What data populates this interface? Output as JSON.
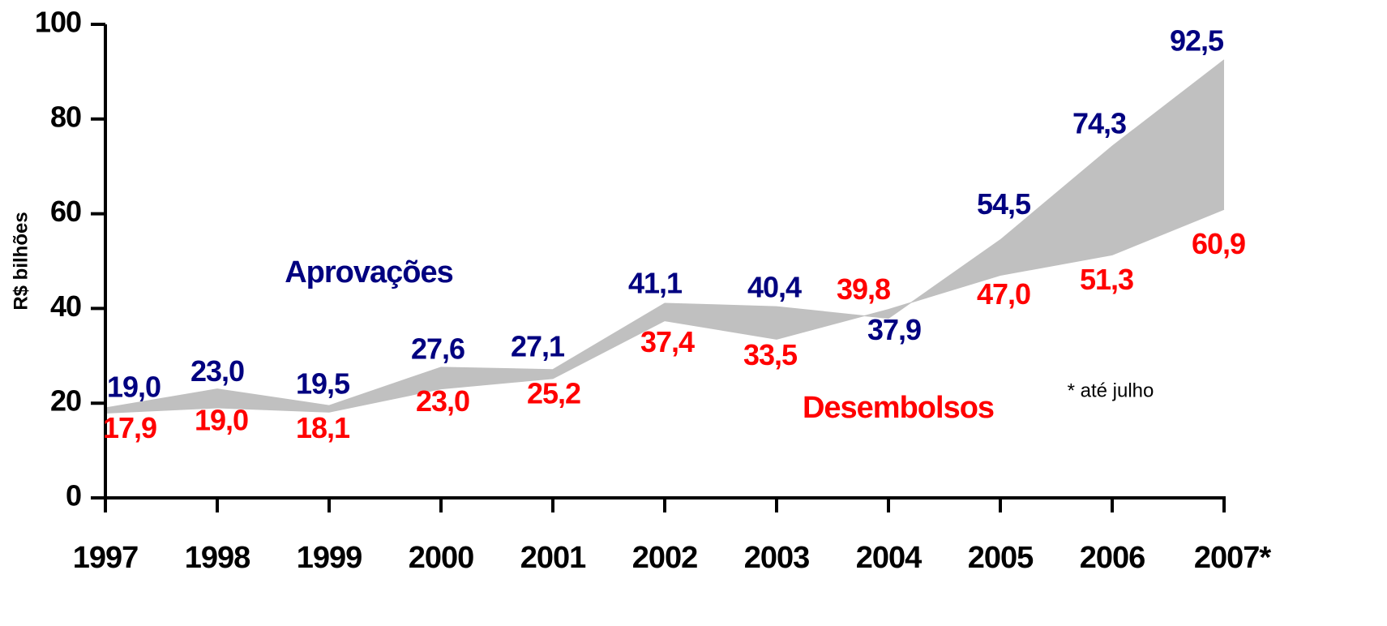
{
  "chart_data": {
    "type": "area_between",
    "y_label": "R$ bilhões",
    "annotation": "* até julho",
    "categories": [
      "1997",
      "1998",
      "1999",
      "2000",
      "2001",
      "2002",
      "2003",
      "2004",
      "2005",
      "2006",
      "2007*"
    ],
    "series": [
      {
        "name": "Aprovações",
        "color": "#000080",
        "values": [
          19.0,
          23.0,
          19.5,
          27.6,
          27.1,
          41.1,
          40.4,
          37.9,
          54.5,
          74.3,
          92.5
        ],
        "value_labels": [
          "19,0",
          "23,0",
          "19,5",
          "27,6",
          "27,1",
          "41,1",
          "40,4",
          "37,9",
          "54,5",
          "74,3",
          "92,5"
        ]
      },
      {
        "name": "Desembolsos",
        "color": "#ff0000",
        "values": [
          17.9,
          19.0,
          18.1,
          23.0,
          25.2,
          37.4,
          33.5,
          39.8,
          47.0,
          51.3,
          60.9
        ],
        "value_labels": [
          "17,9",
          "19,0",
          "18,1",
          "23,0",
          "25,2",
          "37,4",
          "33,5",
          "39,8",
          "47,0",
          "51,3",
          "60,9"
        ]
      }
    ],
    "fill_color": "#c0c0c0",
    "ylim": [
      0,
      100
    ],
    "yticks": [
      0,
      20,
      40,
      60,
      80,
      100
    ]
  }
}
